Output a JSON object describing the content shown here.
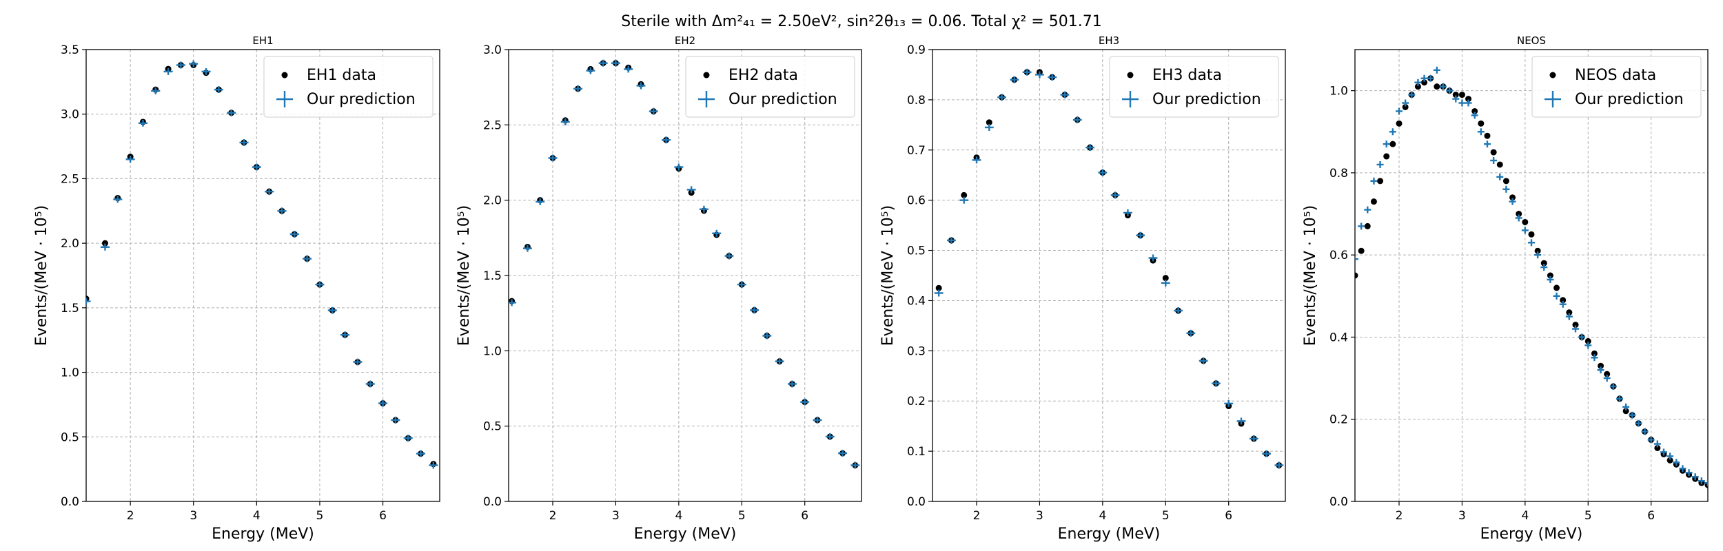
{
  "figure_title_html": "Sterile with Δm²₄₁ = 2.50eV², sin²2θ₁₃ = 0.06. Total χ² = 501.71",
  "colors": {
    "data": "#000000",
    "prediction": "#1f77b4",
    "grid": "#b0b0b0"
  },
  "chart_data": [
    {
      "type": "scatter",
      "title": "EH1",
      "xlabel": "Energy (MeV)",
      "ylabel": "Events/(MeV · 10⁵)",
      "xlim": [
        1.3,
        6.9
      ],
      "ylim": [
        0,
        3.5
      ],
      "xticks": [
        2,
        3,
        4,
        5,
        6
      ],
      "yticks": [
        0.0,
        0.5,
        1.0,
        1.5,
        2.0,
        2.5,
        3.0,
        3.5
      ],
      "ytick_labels": [
        "0.0",
        "0.5",
        "1.0",
        "1.5",
        "2.0",
        "2.5",
        "3.0",
        "3.5"
      ],
      "legend": {
        "position": "top-right",
        "entries": [
          "EH1 data",
          "Our prediction"
        ]
      },
      "x": [
        1.3,
        1.6,
        1.8,
        2.0,
        2.2,
        2.4,
        2.6,
        2.8,
        3.0,
        3.2,
        3.4,
        3.6,
        3.8,
        4.0,
        4.2,
        4.4,
        4.6,
        4.8,
        5.0,
        5.2,
        5.4,
        5.6,
        5.8,
        6.0,
        6.2,
        6.4,
        6.6,
        6.8
      ],
      "series": [
        {
          "name": "EH1 data",
          "values": [
            1.57,
            2.0,
            2.35,
            2.67,
            2.94,
            3.19,
            3.35,
            3.38,
            3.38,
            3.32,
            3.19,
            3.01,
            2.78,
            2.59,
            2.4,
            2.25,
            2.07,
            1.88,
            1.68,
            1.48,
            1.29,
            1.08,
            0.91,
            0.76,
            0.63,
            0.49,
            0.37,
            0.29
          ]
        },
        {
          "name": "Our prediction",
          "values": [
            1.55,
            1.97,
            2.34,
            2.65,
            2.93,
            3.18,
            3.33,
            3.38,
            3.39,
            3.33,
            3.19,
            3.01,
            2.78,
            2.59,
            2.4,
            2.25,
            2.07,
            1.88,
            1.68,
            1.48,
            1.29,
            1.08,
            0.91,
            0.76,
            0.63,
            0.49,
            0.37,
            0.28
          ]
        }
      ]
    },
    {
      "type": "scatter",
      "title": "EH2",
      "xlabel": "Energy (MeV)",
      "ylabel": "Events/(MeV · 10⁵)",
      "xlim": [
        1.3,
        6.9
      ],
      "ylim": [
        0,
        3.0
      ],
      "xticks": [
        2,
        3,
        4,
        5,
        6
      ],
      "yticks": [
        0.0,
        0.5,
        1.0,
        1.5,
        2.0,
        2.5,
        3.0
      ],
      "ytick_labels": [
        "0.0",
        "0.5",
        "1.0",
        "1.5",
        "2.0",
        "2.5",
        "3.0"
      ],
      "legend": {
        "position": "top-right",
        "entries": [
          "EH2 data",
          "Our prediction"
        ]
      },
      "x": [
        1.35,
        1.6,
        1.8,
        2.0,
        2.2,
        2.4,
        2.6,
        2.8,
        3.0,
        3.2,
        3.4,
        3.6,
        3.8,
        4.0,
        4.2,
        4.4,
        4.6,
        4.8,
        5.0,
        5.2,
        5.4,
        5.6,
        5.8,
        6.0,
        6.2,
        6.4,
        6.6,
        6.8
      ],
      "series": [
        {
          "name": "EH2 data",
          "values": [
            1.33,
            1.69,
            2.0,
            2.28,
            2.53,
            2.74,
            2.87,
            2.91,
            2.91,
            2.88,
            2.77,
            2.59,
            2.4,
            2.21,
            2.05,
            1.93,
            1.77,
            1.63,
            1.44,
            1.27,
            1.1,
            0.93,
            0.78,
            0.66,
            0.54,
            0.43,
            0.32,
            0.24
          ]
        },
        {
          "name": "Our prediction",
          "values": [
            1.32,
            1.68,
            1.99,
            2.28,
            2.52,
            2.74,
            2.86,
            2.91,
            2.91,
            2.87,
            2.76,
            2.59,
            2.4,
            2.22,
            2.07,
            1.94,
            1.78,
            1.63,
            1.44,
            1.27,
            1.1,
            0.93,
            0.78,
            0.66,
            0.54,
            0.43,
            0.32,
            0.24
          ]
        }
      ]
    },
    {
      "type": "scatter",
      "title": "EH3",
      "xlabel": "Energy (MeV)",
      "ylabel": "Events/(MeV · 10⁵)",
      "xlim": [
        1.3,
        6.9
      ],
      "ylim": [
        0,
        0.9
      ],
      "xticks": [
        2,
        3,
        4,
        5,
        6
      ],
      "yticks": [
        0.0,
        0.1,
        0.2,
        0.3,
        0.4,
        0.5,
        0.6,
        0.7,
        0.8,
        0.9
      ],
      "ytick_labels": [
        "0.0",
        "0.1",
        "0.2",
        "0.3",
        "0.4",
        "0.5",
        "0.6",
        "0.7",
        "0.8",
        "0.9"
      ],
      "legend": {
        "position": "top-right",
        "entries": [
          "EH3 data",
          "Our prediction"
        ]
      },
      "x": [
        1.4,
        1.6,
        1.8,
        2.0,
        2.2,
        2.4,
        2.6,
        2.8,
        3.0,
        3.2,
        3.4,
        3.6,
        3.8,
        4.0,
        4.2,
        4.4,
        4.6,
        4.8,
        5.0,
        5.2,
        5.4,
        5.6,
        5.8,
        6.0,
        6.2,
        6.4,
        6.6,
        6.8
      ],
      "series": [
        {
          "name": "EH3 data",
          "values": [
            0.425,
            0.52,
            0.61,
            0.685,
            0.755,
            0.805,
            0.84,
            0.855,
            0.855,
            0.845,
            0.81,
            0.76,
            0.705,
            0.655,
            0.61,
            0.57,
            0.53,
            0.48,
            0.445,
            0.38,
            0.335,
            0.28,
            0.235,
            0.19,
            0.155,
            0.125,
            0.095,
            0.072
          ]
        },
        {
          "name": "Our prediction",
          "values": [
            0.415,
            0.52,
            0.6,
            0.68,
            0.745,
            0.805,
            0.84,
            0.855,
            0.85,
            0.845,
            0.81,
            0.76,
            0.705,
            0.655,
            0.61,
            0.575,
            0.53,
            0.485,
            0.435,
            0.38,
            0.335,
            0.28,
            0.235,
            0.195,
            0.16,
            0.125,
            0.095,
            0.072
          ]
        }
      ]
    },
    {
      "type": "scatter",
      "title": "NEOS",
      "xlabel": "Energy (MeV)",
      "ylabel": "Events/(MeV · 10⁵)",
      "xlim": [
        1.3,
        6.9
      ],
      "ylim": [
        0,
        1.1
      ],
      "xticks": [
        2,
        3,
        4,
        5,
        6
      ],
      "yticks": [
        0.0,
        0.2,
        0.4,
        0.6,
        0.8,
        1.0
      ],
      "ytick_labels": [
        "0.0",
        "0.2",
        "0.4",
        "0.6",
        "0.8",
        "1.0"
      ],
      "legend": {
        "position": "top-right",
        "entries": [
          "NEOS data",
          "Our prediction"
        ]
      },
      "x": [
        1.3,
        1.4,
        1.5,
        1.6,
        1.7,
        1.8,
        1.9,
        2.0,
        2.1,
        2.2,
        2.3,
        2.4,
        2.5,
        2.6,
        2.7,
        2.8,
        2.9,
        3.0,
        3.1,
        3.2,
        3.3,
        3.4,
        3.5,
        3.6,
        3.7,
        3.8,
        3.9,
        4.0,
        4.1,
        4.2,
        4.3,
        4.4,
        4.5,
        4.6,
        4.7,
        4.8,
        4.9,
        5.0,
        5.1,
        5.2,
        5.3,
        5.4,
        5.5,
        5.6,
        5.7,
        5.8,
        5.9,
        6.0,
        6.1,
        6.2,
        6.3,
        6.4,
        6.5,
        6.6,
        6.7,
        6.8,
        6.9
      ],
      "series": [
        {
          "name": "NEOS data",
          "values": [
            0.55,
            0.61,
            0.67,
            0.73,
            0.78,
            0.84,
            0.87,
            0.92,
            0.96,
            0.99,
            1.01,
            1.02,
            1.03,
            1.01,
            1.01,
            1.0,
            0.99,
            0.99,
            0.98,
            0.95,
            0.92,
            0.89,
            0.85,
            0.82,
            0.78,
            0.74,
            0.7,
            0.68,
            0.65,
            0.61,
            0.58,
            0.55,
            0.52,
            0.49,
            0.46,
            0.43,
            0.4,
            0.39,
            0.36,
            0.33,
            0.31,
            0.28,
            0.25,
            0.22,
            0.21,
            0.19,
            0.17,
            0.15,
            0.13,
            0.115,
            0.1,
            0.09,
            0.075,
            0.065,
            0.055,
            0.045,
            0.04
          ]
        },
        {
          "name": "Our prediction",
          "values": [
            0.59,
            0.67,
            0.71,
            0.78,
            0.82,
            0.87,
            0.9,
            0.95,
            0.97,
            0.99,
            1.02,
            1.03,
            1.03,
            1.05,
            1.01,
            1.0,
            0.98,
            0.97,
            0.97,
            0.94,
            0.9,
            0.87,
            0.83,
            0.79,
            0.76,
            0.73,
            0.69,
            0.66,
            0.63,
            0.6,
            0.57,
            0.54,
            0.5,
            0.48,
            0.45,
            0.42,
            0.4,
            0.38,
            0.35,
            0.32,
            0.3,
            0.28,
            0.25,
            0.23,
            0.21,
            0.19,
            0.17,
            0.15,
            0.14,
            0.12,
            0.11,
            0.095,
            0.08,
            0.07,
            0.06,
            0.05,
            0.045
          ]
        }
      ]
    }
  ]
}
